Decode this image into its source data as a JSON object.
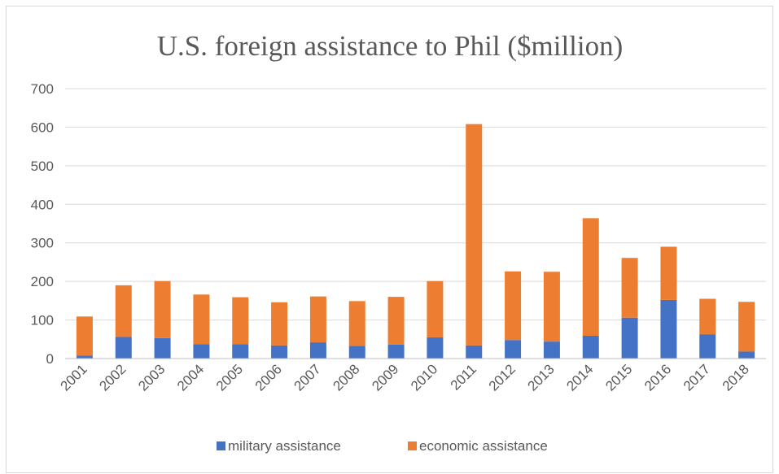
{
  "chart_data": {
    "type": "bar",
    "stacked": true,
    "title": "U.S. foreign assistance to Phil ($million)",
    "xlabel": "",
    "ylabel": "",
    "ylim": [
      0,
      700
    ],
    "yticks": [
      0,
      100,
      200,
      300,
      400,
      500,
      600,
      700
    ],
    "grid": true,
    "legend_position": "bottom",
    "categories": [
      "2001",
      "2002",
      "2003",
      "2004",
      "2005",
      "2006",
      "2007",
      "2008",
      "2009",
      "2010",
      "2011",
      "2012",
      "2013",
      "2014",
      "2015",
      "2016",
      "2017",
      "2018"
    ],
    "series": [
      {
        "name": "military assistance",
        "color": "#4472c4",
        "values": [
          8,
          56,
          53,
          37,
          37,
          34,
          42,
          33,
          36,
          55,
          34,
          48,
          44,
          59,
          106,
          152,
          63,
          18
        ]
      },
      {
        "name": "economic assistance",
        "color": "#ed7d31",
        "values": [
          101,
          134,
          148,
          129,
          122,
          112,
          119,
          116,
          124,
          146,
          574,
          178,
          181,
          305,
          155,
          138,
          92,
          129
        ]
      }
    ]
  }
}
